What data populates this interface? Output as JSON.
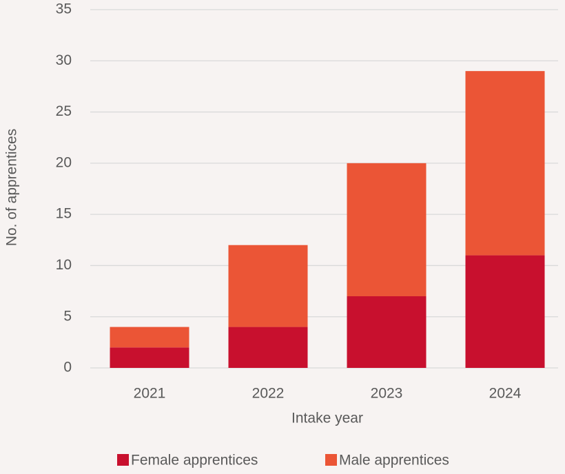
{
  "chart_data": {
    "type": "bar",
    "stacked": true,
    "categories": [
      "2021",
      "2022",
      "2023",
      "2024"
    ],
    "series": [
      {
        "name": "Female apprentices",
        "color": "#c8102e",
        "values": [
          2,
          4,
          7,
          11
        ]
      },
      {
        "name": "Male apprentices",
        "color": "#eb5536",
        "values": [
          2,
          8,
          13,
          18
        ]
      }
    ],
    "xlabel": "Intake year",
    "ylabel": "No. of apprentices",
    "ylim": [
      0,
      35
    ],
    "yticks": [
      0,
      5,
      10,
      15,
      20,
      25,
      30,
      35
    ],
    "grid": true,
    "legend": "bottom"
  }
}
